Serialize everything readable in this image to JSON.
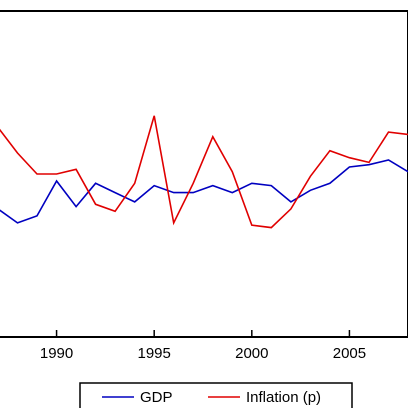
{
  "chart_data": {
    "type": "line",
    "x_ticks": [
      1990,
      1995,
      2000,
      2005
    ],
    "x": [
      1987,
      1988,
      1989,
      1990,
      1991,
      1992,
      1993,
      1994,
      1995,
      1996,
      1997,
      1998,
      1999,
      2000,
      2001,
      2002,
      2003,
      2004,
      2005,
      2006,
      2007,
      2008
    ],
    "xlim": [
      1987,
      2008
    ],
    "ylim": [
      -4,
      10
    ],
    "grid": false,
    "legend_position": "bottom",
    "series": [
      {
        "name": "GDP",
        "color": "#0000c0",
        "values": [
          1.5,
          0.9,
          1.2,
          2.7,
          1.6,
          2.6,
          2.2,
          1.8,
          2.5,
          2.2,
          2.2,
          2.5,
          2.2,
          2.6,
          2.5,
          1.8,
          2.3,
          2.6,
          3.3,
          3.4,
          3.6,
          3.1
        ]
      },
      {
        "name": "Inflation (p)",
        "color": "#e00000",
        "values": [
          5.0,
          3.9,
          3.0,
          3.0,
          3.2,
          1.7,
          1.4,
          2.6,
          5.5,
          0.9,
          2.6,
          4.6,
          3.1,
          0.8,
          0.7,
          1.5,
          2.9,
          4.0,
          3.7,
          3.5,
          4.8,
          4.7
        ]
      }
    ]
  }
}
